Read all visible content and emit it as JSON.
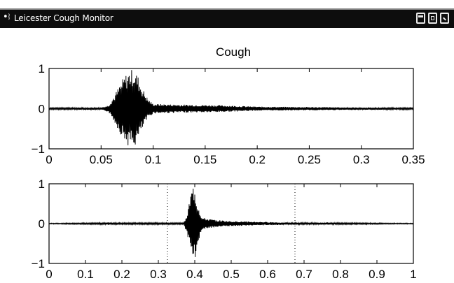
{
  "window": {
    "title": "Leicester Cough Monitor",
    "app_icon": "cough-monitor-icon",
    "buttons": [
      "minimize-icon",
      "maximize-icon",
      "close-icon"
    ]
  },
  "chart_data": [
    {
      "type": "line",
      "title": "Cough",
      "xlim": [
        0,
        0.35
      ],
      "ylim": [
        -1,
        1
      ],
      "xticks": [
        "0",
        "0.05",
        "0.1",
        "0.15",
        "0.2",
        "0.25",
        "0.3",
        "0.35"
      ],
      "yticks": [
        "1",
        "0",
        "−1"
      ],
      "series": [
        {
          "color": "#000000",
          "envelope": [
            [
              0,
              0.02
            ],
            [
              0.05,
              0.03
            ],
            [
              0.057,
              0.08
            ],
            [
              0.062,
              0.3
            ],
            [
              0.067,
              0.55
            ],
            [
              0.072,
              0.8
            ],
            [
              0.077,
              0.95
            ],
            [
              0.081,
              1.0
            ],
            [
              0.085,
              0.85
            ],
            [
              0.09,
              0.5
            ],
            [
              0.095,
              0.25
            ],
            [
              0.1,
              0.12
            ],
            [
              0.13,
              0.1
            ],
            [
              0.16,
              0.09
            ],
            [
              0.2,
              0.05
            ],
            [
              0.25,
              0.04
            ],
            [
              0.3,
              0.03
            ],
            [
              0.35,
              0.02
            ]
          ]
        }
      ]
    },
    {
      "type": "line",
      "title": "",
      "xlim": [
        0,
        1
      ],
      "ylim": [
        -1,
        1
      ],
      "xticks": [
        "0",
        "0.1",
        "0.2",
        "0.3",
        "0.4",
        "0.5",
        "0.6",
        "0.7",
        "0.8",
        "0.9",
        "1"
      ],
      "yticks": [
        "1",
        "0",
        "−1"
      ],
      "markers": [
        0.325,
        0.675
      ],
      "series": [
        {
          "color": "#000000",
          "envelope": [
            [
              0,
              0.01
            ],
            [
              0.15,
              0.02
            ],
            [
              0.16,
              0.04
            ],
            [
              0.18,
              0.02
            ],
            [
              0.37,
              0.02
            ],
            [
              0.38,
              0.3
            ],
            [
              0.39,
              0.8
            ],
            [
              0.395,
              0.95
            ],
            [
              0.4,
              0.95
            ],
            [
              0.405,
              0.6
            ],
            [
              0.42,
              0.15
            ],
            [
              0.45,
              0.1
            ],
            [
              0.5,
              0.06
            ],
            [
              0.6,
              0.04
            ],
            [
              0.7,
              0.02
            ],
            [
              0.76,
              0.03
            ],
            [
              0.8,
              0.02
            ],
            [
              1,
              0.01
            ]
          ]
        }
      ]
    }
  ]
}
